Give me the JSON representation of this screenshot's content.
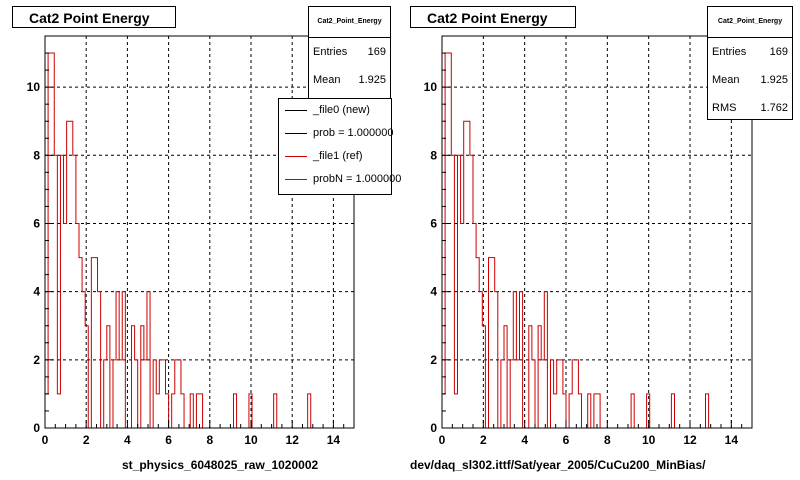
{
  "colors": {
    "ref": "#cc0000",
    "new": "#000000",
    "grid": "#000000",
    "frame": "#000000"
  },
  "left_panel": {
    "title": "Cat2 Point Energy",
    "stats": {
      "title": "Cat2_Point_Energy",
      "entries_label": "Entries",
      "entries": "169",
      "mean_label": "Mean",
      "mean": "1.925"
    },
    "legend": [
      {
        "label": "_file0 (new)",
        "color": "#000000"
      },
      {
        "label": "prob = 1.000000",
        "color": "#000000"
      },
      {
        "label": "_file1 (ref)",
        "color": "#cc0000"
      },
      {
        "label": "probN = 1.000000",
        "color": "#cc0000"
      }
    ],
    "file_label": "st_physics_6048025_raw_1020002"
  },
  "right_panel": {
    "title": "Cat2 Point Energy",
    "stats": {
      "title": "Cat2_Point_Energy",
      "entries_label": "Entries",
      "entries": "169",
      "mean_label": "Mean",
      "mean": "1.925",
      "rms_label": "RMS",
      "rms": "1.762"
    },
    "file_label": "dev/daq_sl302.ittf/Sat/year_2005/CuCu200_MinBias/"
  },
  "footer_note": "",
  "chart_data": [
    {
      "type": "line",
      "title": "Cat2 Point Energy",
      "xlabel": "st_physics_6048025_raw_1020002",
      "ylabel": "",
      "xlim": [
        0,
        15
      ],
      "ylim": [
        0,
        11.5
      ],
      "xticks": [
        0,
        2,
        4,
        6,
        8,
        10,
        12,
        14
      ],
      "yticks": [
        0,
        2,
        4,
        6,
        8,
        10
      ],
      "grid": true,
      "bin_width": 0.15,
      "series": [
        {
          "name": "_file1 (ref)",
          "color": "#cc0000",
          "values": [
            1,
            11,
            11,
            8,
            1,
            8,
            6,
            9,
            9,
            8,
            6,
            5,
            4,
            3,
            0,
            5,
            5,
            4,
            0,
            2,
            3,
            0,
            2,
            4,
            2,
            4,
            0,
            0,
            3,
            2,
            0,
            3,
            2,
            4,
            0,
            2,
            1,
            2,
            2,
            1,
            0,
            1,
            2,
            2,
            1,
            0,
            0,
            1,
            0,
            1,
            1,
            0,
            0,
            0,
            0,
            0,
            0,
            0,
            0,
            0,
            0,
            1,
            0,
            0,
            0,
            0,
            1,
            0,
            0,
            0,
            0,
            0,
            0,
            0,
            1,
            0,
            0,
            0,
            0,
            0,
            0,
            0,
            0,
            0,
            0,
            1,
            0,
            0,
            0,
            0,
            0,
            0,
            0,
            0,
            0,
            0,
            0,
            0,
            0,
            0
          ]
        }
      ]
    },
    {
      "type": "line",
      "title": "Cat2 Point Energy",
      "xlabel": "dev/daq_sl302.ittf/Sat/year_2005/CuCu200_MinBias/",
      "ylabel": "",
      "xlim": [
        0,
        15
      ],
      "ylim": [
        0,
        11.5
      ],
      "xticks": [
        0,
        2,
        4,
        6,
        8,
        10,
        12,
        14
      ],
      "yticks": [
        0,
        2,
        4,
        6,
        8,
        10
      ],
      "grid": true,
      "bin_width": 0.15,
      "series": [
        {
          "name": "",
          "color": "#cc0000",
          "values": [
            1,
            11,
            11,
            8,
            1,
            8,
            6,
            9,
            9,
            8,
            6,
            5,
            4,
            3,
            0,
            5,
            5,
            4,
            0,
            2,
            3,
            0,
            2,
            4,
            2,
            4,
            0,
            0,
            3,
            2,
            0,
            3,
            2,
            4,
            0,
            2,
            1,
            2,
            2,
            1,
            0,
            1,
            2,
            2,
            1,
            0,
            0,
            1,
            0,
            1,
            1,
            0,
            0,
            0,
            0,
            0,
            0,
            0,
            0,
            0,
            0,
            1,
            0,
            0,
            0,
            0,
            1,
            0,
            0,
            0,
            0,
            0,
            0,
            0,
            1,
            0,
            0,
            0,
            0,
            0,
            0,
            0,
            0,
            0,
            0,
            1,
            0,
            0,
            0,
            0,
            0,
            0,
            0,
            0,
            0,
            0,
            0,
            0,
            0,
            0
          ]
        }
      ]
    }
  ]
}
